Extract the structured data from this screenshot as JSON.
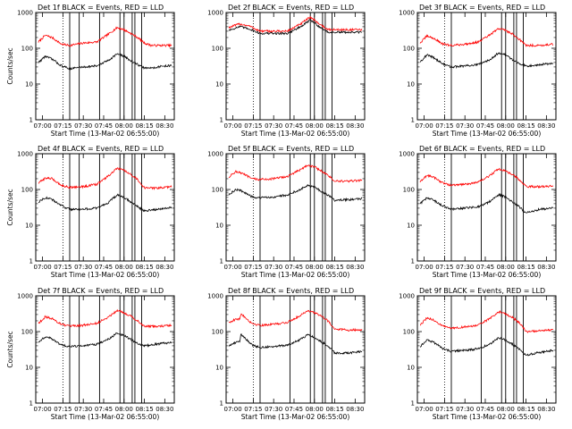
{
  "figure": {
    "type": "multi-panel line chart grid",
    "rows": 3,
    "columns": 3,
    "colors": {
      "events": "#000000",
      "lld": "#ff0000",
      "background": "#ffffff"
    }
  },
  "chart_data": [
    {
      "type": "line",
      "title": "Det 1f BLACK = Events, RED = LLD",
      "xlabel": "Start Time (13-Mar-02 06:55:00)",
      "ylabel": "Counts/sec",
      "yscale": "log",
      "ylim": [
        1,
        1000
      ],
      "ytick_labels": [
        "1",
        "10",
        "100",
        "1000"
      ],
      "xlim": [
        "06:55",
        "08:37"
      ],
      "xtick_labels": [
        "07:00",
        "07:15",
        "07:30",
        "07:45",
        "08:00",
        "08:15",
        "08:30"
      ],
      "dotted_vlines": [
        "07:15"
      ],
      "solid_vlines": [
        "07:20",
        "07:27",
        "07:42",
        "07:57",
        "08:00",
        "08:06",
        "08:08",
        "08:13"
      ],
      "series": [
        {
          "name": "LLD",
          "x": [
            "06:57",
            "07:02",
            "07:07",
            "07:14",
            "07:20",
            "07:30",
            "07:40",
            "07:48",
            "07:55",
            "08:00",
            "08:05",
            "08:10",
            "08:15",
            "08:20",
            "08:25",
            "08:30",
            "08:35"
          ],
          "values": [
            150,
            230,
            200,
            130,
            120,
            140,
            150,
            240,
            380,
            330,
            260,
            200,
            140,
            120,
            120,
            120,
            120
          ]
        },
        {
          "x": [
            "06:57",
            "07:02",
            "07:07",
            "07:14",
            "07:20",
            "07:30",
            "07:40",
            "07:48",
            "07:55",
            "08:00",
            "08:05",
            "08:10",
            "08:15",
            "08:20",
            "08:25",
            "08:30",
            "08:35"
          ],
          "values": [
            40,
            60,
            50,
            32,
            27,
            30,
            32,
            45,
            70,
            60,
            45,
            35,
            28,
            28,
            30,
            32,
            33
          ]
        }
      ]
    },
    {
      "type": "line",
      "title": "Det 2f BLACK = Events, RED = LLD",
      "xlabel": "Start Time (13-Mar-02 06:55:00)",
      "ylabel": "",
      "yscale": "log",
      "ylim": [
        1,
        1000
      ],
      "ytick_labels": [
        "1",
        "10",
        "100",
        "1000"
      ],
      "xlim": [
        "06:55",
        "08:37"
      ],
      "xtick_labels": [
        "07:00",
        "07:15",
        "07:30",
        "07:45",
        "08:00",
        "08:15",
        "08:30"
      ],
      "dotted_vlines": [
        "07:15"
      ],
      "solid_vlines": [
        "07:20",
        "07:42",
        "07:57",
        "08:00",
        "08:06",
        "08:08",
        "08:13"
      ],
      "series": [
        {
          "name": "LLD",
          "x": [
            "06:57",
            "07:05",
            "07:12",
            "07:20",
            "07:30",
            "07:40",
            "07:50",
            "07:57",
            "08:03",
            "08:10",
            "08:20",
            "08:35"
          ],
          "values": [
            380,
            480,
            420,
            300,
            300,
            300,
            480,
            750,
            500,
            330,
            330,
            330
          ]
        },
        {
          "x": [
            "06:57",
            "07:05",
            "07:12",
            "07:20",
            "07:30",
            "07:40",
            "07:50",
            "07:57",
            "08:03",
            "08:10",
            "08:20",
            "08:35"
          ],
          "values": [
            320,
            400,
            350,
            260,
            260,
            260,
            400,
            620,
            420,
            280,
            280,
            280
          ]
        }
      ]
    },
    {
      "type": "line",
      "title": "Det 3f BLACK = Events, RED = LLD",
      "xlabel": "Start Time (13-Mar-02 06:55:00)",
      "ylabel": "",
      "yscale": "log",
      "ylim": [
        1,
        1000
      ],
      "ytick_labels": [
        "1",
        "10",
        "100",
        "1000"
      ],
      "xlim": [
        "06:55",
        "08:37"
      ],
      "xtick_labels": [
        "07:00",
        "07:15",
        "07:30",
        "07:45",
        "08:00",
        "08:15",
        "08:30"
      ],
      "dotted_vlines": [
        "07:15"
      ],
      "solid_vlines": [
        "07:20",
        "07:42",
        "07:57",
        "08:00",
        "08:06",
        "08:08",
        "08:13"
      ],
      "series": [
        {
          "name": "LLD",
          "x": [
            "06:57",
            "07:02",
            "07:07",
            "07:14",
            "07:20",
            "07:30",
            "07:40",
            "07:48",
            "07:55",
            "08:00",
            "08:05",
            "08:10",
            "08:15",
            "08:25",
            "08:35"
          ],
          "values": [
            140,
            220,
            190,
            130,
            120,
            130,
            150,
            230,
            360,
            320,
            250,
            180,
            120,
            120,
            130
          ]
        },
        {
          "x": [
            "06:57",
            "07:02",
            "07:07",
            "07:14",
            "07:20",
            "07:30",
            "07:40",
            "07:48",
            "07:55",
            "08:00",
            "08:05",
            "08:10",
            "08:15",
            "08:25",
            "08:35"
          ],
          "values": [
            42,
            65,
            55,
            36,
            30,
            32,
            35,
            48,
            75,
            65,
            48,
            38,
            32,
            35,
            38
          ]
        }
      ]
    },
    {
      "type": "line",
      "title": "Det 4f BLACK = Events, RED = LLD",
      "xlabel": "Start Time (13-Mar-02 06:55:00)",
      "ylabel": "Counts/sec",
      "yscale": "log",
      "ylim": [
        1,
        1000
      ],
      "ytick_labels": [
        "1",
        "10",
        "100",
        "1000"
      ],
      "xlim": [
        "06:55",
        "08:37"
      ],
      "xtick_labels": [
        "07:00",
        "07:15",
        "07:30",
        "07:45",
        "08:00",
        "08:15",
        "08:30"
      ],
      "dotted_vlines": [
        "07:15"
      ],
      "solid_vlines": [
        "07:20",
        "07:27",
        "07:42",
        "07:57",
        "08:00",
        "08:06",
        "08:08",
        "08:13"
      ],
      "series": [
        {
          "name": "LLD",
          "x": [
            "06:57",
            "07:02",
            "07:07",
            "07:14",
            "07:20",
            "07:30",
            "07:40",
            "07:48",
            "07:55",
            "08:00",
            "08:05",
            "08:10",
            "08:15",
            "08:25",
            "08:35"
          ],
          "values": [
            150,
            210,
            200,
            130,
            115,
            120,
            140,
            230,
            390,
            340,
            260,
            190,
            110,
            110,
            120
          ]
        },
        {
          "x": [
            "06:57",
            "07:02",
            "07:07",
            "07:14",
            "07:20",
            "07:30",
            "07:40",
            "07:48",
            "07:55",
            "08:00",
            "08:05",
            "08:10",
            "08:15",
            "08:25",
            "08:35"
          ],
          "values": [
            45,
            60,
            52,
            35,
            28,
            28,
            30,
            42,
            70,
            60,
            45,
            33,
            25,
            28,
            32
          ]
        }
      ]
    },
    {
      "type": "line",
      "title": "Det 5f BLACK = Events, RED = LLD",
      "xlabel": "Start Time (13-Mar-02 06:55:00)",
      "ylabel": "",
      "yscale": "log",
      "ylim": [
        1,
        1000
      ],
      "ytick_labels": [
        "1",
        "10",
        "100",
        "1000"
      ],
      "xlim": [
        "06:55",
        "08:37"
      ],
      "xtick_labels": [
        "07:00",
        "07:15",
        "07:30",
        "07:45",
        "08:00",
        "08:15",
        "08:30"
      ],
      "dotted_vlines": [
        "07:15"
      ],
      "solid_vlines": [
        "07:20",
        "07:42",
        "07:57",
        "08:00",
        "08:06",
        "08:08",
        "08:13"
      ],
      "series": [
        {
          "name": "LLD",
          "x": [
            "06:57",
            "07:02",
            "07:07",
            "07:14",
            "07:20",
            "07:30",
            "07:40",
            "07:48",
            "07:55",
            "08:00",
            "08:05",
            "08:10",
            "08:15",
            "08:25",
            "08:35"
          ],
          "values": [
            220,
            320,
            280,
            200,
            190,
            200,
            230,
            330,
            480,
            430,
            330,
            250,
            170,
            170,
            180
          ]
        },
        {
          "x": [
            "06:57",
            "07:02",
            "07:07",
            "07:14",
            "07:20",
            "07:30",
            "07:40",
            "07:48",
            "07:55",
            "08:00",
            "08:05",
            "08:10",
            "08:15",
            "08:25",
            "08:35"
          ],
          "values": [
            70,
            100,
            90,
            62,
            58,
            62,
            70,
            95,
            130,
            115,
            90,
            70,
            50,
            52,
            55
          ]
        }
      ]
    },
    {
      "type": "line",
      "title": "Det 6f BLACK = Events, RED = LLD",
      "xlabel": "Start Time (13-Mar-02 06:55:00)",
      "ylabel": "",
      "yscale": "log",
      "ylim": [
        1,
        1000
      ],
      "ytick_labels": [
        "1",
        "10",
        "100",
        "1000"
      ],
      "xlim": [
        "06:55",
        "08:37"
      ],
      "xtick_labels": [
        "07:00",
        "07:15",
        "07:30",
        "07:45",
        "08:00",
        "08:15",
        "08:30"
      ],
      "dotted_vlines": [
        "07:15"
      ],
      "solid_vlines": [
        "07:20",
        "07:42",
        "07:57",
        "08:00",
        "08:06",
        "08:08",
        "08:13"
      ],
      "series": [
        {
          "name": "LLD",
          "x": [
            "06:57",
            "07:02",
            "07:07",
            "07:14",
            "07:20",
            "07:30",
            "07:40",
            "07:48",
            "07:55",
            "08:00",
            "08:05",
            "08:10",
            "08:15",
            "08:25",
            "08:35"
          ],
          "values": [
            160,
            250,
            220,
            150,
            130,
            140,
            160,
            240,
            380,
            330,
            260,
            190,
            120,
            120,
            125
          ]
        },
        {
          "x": [
            "06:57",
            "07:02",
            "07:07",
            "07:14",
            "07:20",
            "07:30",
            "07:40",
            "07:48",
            "07:55",
            "08:00",
            "08:05",
            "08:10",
            "08:15",
            "08:25",
            "08:35"
          ],
          "values": [
            40,
            58,
            50,
            34,
            28,
            30,
            33,
            45,
            72,
            62,
            45,
            33,
            22,
            28,
            30
          ]
        }
      ]
    },
    {
      "type": "line",
      "title": "Det 7f BLACK = Events, RED = LLD",
      "xlabel": "Start Time (13-Mar-02 06:55:00)",
      "ylabel": "Counts/sec",
      "yscale": "log",
      "ylim": [
        1,
        1000
      ],
      "ytick_labels": [
        "1",
        "10",
        "100",
        "1000"
      ],
      "xlim": [
        "06:55",
        "08:37"
      ],
      "xtick_labels": [
        "07:00",
        "07:15",
        "07:30",
        "07:45",
        "08:00",
        "08:15",
        "08:30"
      ],
      "dotted_vlines": [
        "07:15"
      ],
      "solid_vlines": [
        "07:20",
        "07:27",
        "07:42",
        "07:57",
        "08:00",
        "08:06",
        "08:08",
        "08:13"
      ],
      "series": [
        {
          "name": "LLD",
          "x": [
            "06:57",
            "07:02",
            "07:07",
            "07:14",
            "07:20",
            "07:30",
            "07:40",
            "07:48",
            "07:55",
            "08:00",
            "08:05",
            "08:10",
            "08:15",
            "08:25",
            "08:35"
          ],
          "values": [
            170,
            260,
            230,
            160,
            140,
            150,
            170,
            250,
            390,
            340,
            270,
            200,
            140,
            140,
            150
          ]
        },
        {
          "x": [
            "06:57",
            "07:02",
            "07:07",
            "07:14",
            "07:20",
            "07:30",
            "07:40",
            "07:48",
            "07:55",
            "08:00",
            "08:05",
            "08:10",
            "08:15",
            "08:25",
            "08:35"
          ],
          "values": [
            50,
            72,
            62,
            42,
            38,
            40,
            44,
            60,
            90,
            78,
            60,
            46,
            40,
            45,
            50
          ]
        }
      ]
    },
    {
      "type": "line",
      "title": "Det 8f BLACK = Events, RED = LLD",
      "xlabel": "Start Time (13-Mar-02 06:55:00)",
      "ylabel": "",
      "yscale": "log",
      "ylim": [
        1,
        1000
      ],
      "ytick_labels": [
        "1",
        "10",
        "100",
        "1000"
      ],
      "xlim": [
        "06:55",
        "08:37"
      ],
      "xtick_labels": [
        "07:00",
        "07:15",
        "07:30",
        "07:45",
        "08:00",
        "08:15",
        "08:30"
      ],
      "dotted_vlines": [
        "07:15"
      ],
      "solid_vlines": [
        "07:20",
        "07:42",
        "07:57",
        "08:00",
        "08:06",
        "08:08",
        "08:13"
      ],
      "series": [
        {
          "name": "LLD",
          "x": [
            "06:57",
            "07:02",
            "07:05",
            "07:06",
            "07:10",
            "07:14",
            "07:20",
            "07:30",
            "07:40",
            "07:48",
            "07:55",
            "08:00",
            "08:05",
            "08:10",
            "08:15",
            "08:25",
            "08:35"
          ],
          "values": [
            180,
            220,
            220,
            320,
            230,
            170,
            150,
            160,
            180,
            260,
            390,
            340,
            270,
            200,
            120,
            110,
            115
          ]
        },
        {
          "x": [
            "06:57",
            "07:02",
            "07:05",
            "07:06",
            "07:10",
            "07:14",
            "07:20",
            "07:30",
            "07:40",
            "07:48",
            "07:55",
            "08:00",
            "08:05",
            "08:10",
            "08:15",
            "08:25",
            "08:35"
          ],
          "values": [
            40,
            50,
            55,
            85,
            60,
            42,
            36,
            38,
            42,
            55,
            80,
            70,
            52,
            40,
            25,
            25,
            28
          ]
        }
      ]
    },
    {
      "type": "line",
      "title": "Det 9f BLACK = Events, RED = LLD",
      "xlabel": "Start Time (13-Mar-02 06:55:00)",
      "ylabel": "",
      "yscale": "log",
      "ylim": [
        1,
        1000
      ],
      "ytick_labels": [
        "1",
        "10",
        "100",
        "1000"
      ],
      "xlim": [
        "06:55",
        "08:37"
      ],
      "xtick_labels": [
        "07:00",
        "07:15",
        "07:30",
        "07:45",
        "08:00",
        "08:15",
        "08:30"
      ],
      "dotted_vlines": [
        "07:15"
      ],
      "solid_vlines": [
        "07:20",
        "07:42",
        "07:57",
        "08:00",
        "08:06",
        "08:08",
        "08:13"
      ],
      "series": [
        {
          "name": "LLD",
          "x": [
            "06:57",
            "07:02",
            "07:07",
            "07:14",
            "07:20",
            "07:30",
            "07:40",
            "07:48",
            "07:55",
            "08:00",
            "08:05",
            "08:10",
            "08:15",
            "08:25",
            "08:35"
          ],
          "values": [
            150,
            240,
            210,
            140,
            125,
            135,
            150,
            230,
            360,
            310,
            250,
            180,
            100,
            105,
            110
          ]
        },
        {
          "x": [
            "06:57",
            "07:02",
            "07:07",
            "07:14",
            "07:20",
            "07:30",
            "07:40",
            "07:48",
            "07:55",
            "08:00",
            "08:05",
            "08:10",
            "08:15",
            "08:25",
            "08:35"
          ],
          "values": [
            38,
            58,
            50,
            33,
            28,
            30,
            33,
            44,
            68,
            58,
            44,
            32,
            22,
            26,
            30
          ]
        }
      ]
    }
  ]
}
